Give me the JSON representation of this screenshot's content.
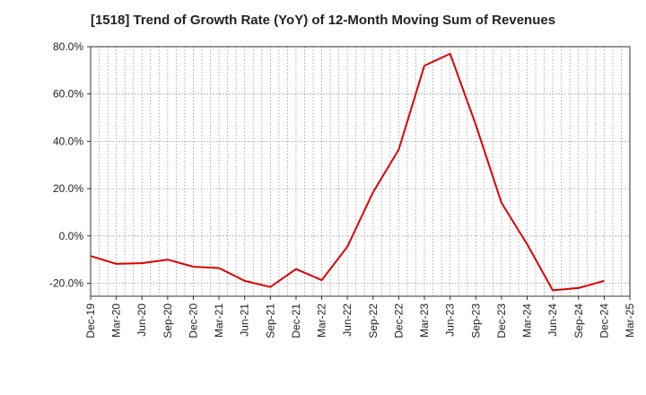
{
  "chart_data": {
    "type": "line",
    "title": "[1518]  Trend of Growth Rate (YoY) of 12-Month Moving Sum of Revenues",
    "xlabel": "",
    "ylabel": "",
    "ylim": [
      -25.5,
      80
    ],
    "y_ticks": [
      80,
      60,
      40,
      20,
      0,
      -20
    ],
    "y_tick_labels": [
      "80.0%",
      "60.0%",
      "40.0%",
      "20.0%",
      "0.0%",
      "-20.0%"
    ],
    "x_tick_labels": [
      "Dec-19",
      "Mar-20",
      "Jun-20",
      "Sep-20",
      "Dec-20",
      "Mar-21",
      "Jun-21",
      "Sep-21",
      "Dec-21",
      "Mar-22",
      "Jun-22",
      "Sep-22",
      "Dec-22",
      "Mar-23",
      "Jun-23",
      "Sep-23",
      "Dec-23",
      "Mar-24",
      "Jun-24",
      "Sep-24",
      "Dec-24",
      "Mar-25"
    ],
    "grid": true,
    "line_color": "#dd0000",
    "series": [
      {
        "values": [
          -8.5,
          -11.8,
          -11.5,
          -10.0,
          -13.0,
          -13.6,
          -19.0,
          -21.6,
          -14.0,
          -18.7,
          -4.5,
          18.5,
          36.5,
          72.0,
          77.0,
          47.0,
          14.0,
          -3.5,
          -23.0,
          -22.0,
          -19.0,
          null
        ]
      }
    ]
  }
}
